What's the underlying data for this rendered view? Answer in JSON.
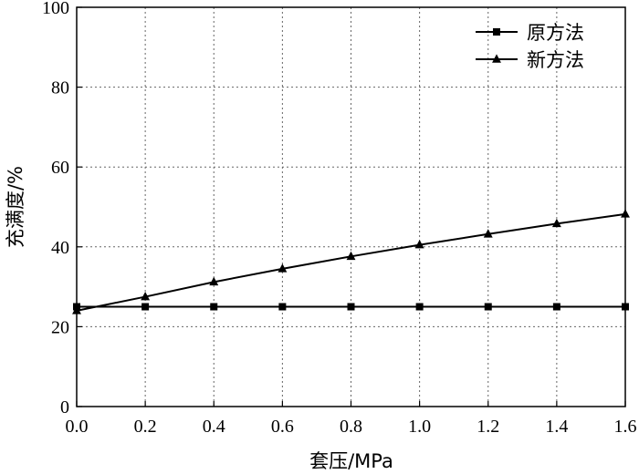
{
  "chart_data": {
    "type": "line",
    "title": "",
    "xlabel": "套压/MPa",
    "ylabel": "充满度/%",
    "xlim": [
      0.0,
      1.6
    ],
    "ylim": [
      0,
      100
    ],
    "x_ticks": [
      "0.0",
      "0.2",
      "0.4",
      "0.6",
      "0.8",
      "1.0",
      "1.2",
      "1.4",
      "1.6"
    ],
    "y_ticks": [
      "0",
      "20",
      "40",
      "60",
      "80",
      "100"
    ],
    "grid": true,
    "legend_position": "top-right",
    "x": [
      0.0,
      0.2,
      0.4,
      0.6,
      0.8,
      1.0,
      1.2,
      1.4,
      1.6
    ],
    "series": [
      {
        "name": "原方法",
        "marker": "square",
        "color": "#000000",
        "values": [
          25.0,
          25.0,
          25.0,
          25.0,
          25.0,
          25.0,
          25.0,
          25.0,
          25.0
        ]
      },
      {
        "name": "新方法",
        "marker": "triangle",
        "color": "#000000",
        "values": [
          24.0,
          27.5,
          31.2,
          34.5,
          37.6,
          40.5,
          43.2,
          45.8,
          48.2
        ]
      }
    ]
  }
}
